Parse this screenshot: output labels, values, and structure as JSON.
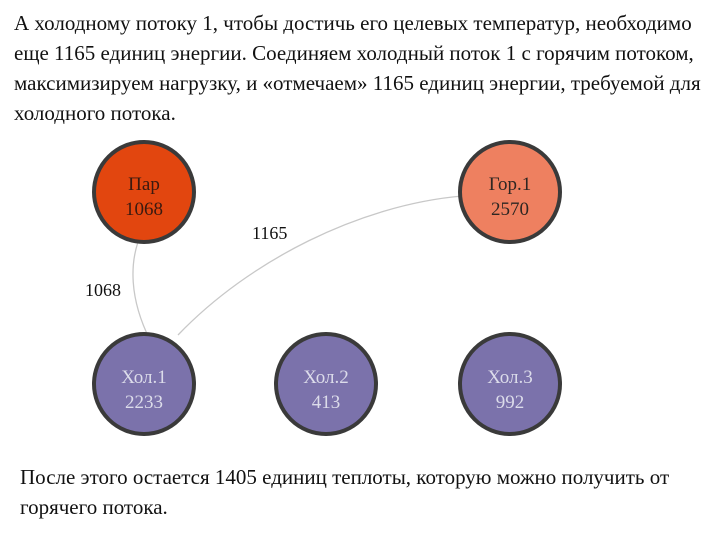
{
  "intro_text": "А холодному потоку 1, чтобы достичь его целевых температур, необходимо еще 1165 единиц энергии. Соединяем холодный поток 1 с горячим потоком, максимизируем нагрузку, и «отмечаем» 1165 единиц энергии, требуемой для холодного потока.",
  "outro_text": "После этого остается 1405 единиц теплоты, которую можно получить от горячего потока.",
  "colors": {
    "steam": "#e2460f",
    "hot": "#ee8060",
    "cold": "#7b72ab",
    "node_stroke": "#3a3a3a",
    "edge": "#c8c8c8"
  },
  "nodes": [
    {
      "id": "steam",
      "name": "Пар",
      "value": "1068"
    },
    {
      "id": "hot1",
      "name": "Гор.1",
      "value": "2570"
    },
    {
      "id": "cold1",
      "name": "Хол.1",
      "value": "2233"
    },
    {
      "id": "cold2",
      "name": "Хол.2",
      "value": "413"
    },
    {
      "id": "cold3",
      "name": "Хол.3",
      "value": "992"
    }
  ],
  "edges": [
    {
      "from": "steam",
      "to": "cold1",
      "label": "1068"
    },
    {
      "from": "hot1",
      "to": "cold1",
      "label": "1165"
    }
  ]
}
